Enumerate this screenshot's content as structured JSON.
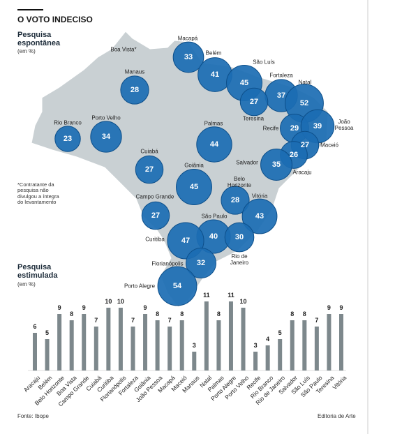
{
  "header": {
    "title": "O VOTO INDECISO"
  },
  "chart_data": [
    {
      "type": "bubble",
      "title": "Pesquisa espontânea",
      "subtitle": "(em %)",
      "note": "*Contratante da pesquisa não divulgou a íntegra do levantamento",
      "color": "#1b6db3",
      "categories": [
        "Boa Vista*",
        "Macapá",
        "Belém",
        "São Luís",
        "Manaus",
        "Fortaleza",
        "Natal",
        "Teresina",
        "Recife",
        "João Pessoa",
        "Maceió",
        "Aracaju",
        "Salvador",
        "Rio Branco",
        "Porto Velho",
        "Palmas",
        "Cuiabá",
        "Goiânia",
        "Belo Horizonte",
        "Vitória",
        "Campo Grande",
        "São Paulo",
        "Curitiba",
        "Rio de Janeiro",
        "Florianópolis",
        "Porto Alegre"
      ],
      "values": [
        null,
        33,
        41,
        45,
        28,
        37,
        52,
        27,
        29,
        39,
        27,
        26,
        35,
        23,
        34,
        44,
        27,
        45,
        28,
        43,
        27,
        40,
        47,
        30,
        32,
        54
      ]
    },
    {
      "type": "bar",
      "title": "Pesquisa estimulada",
      "subtitle": "(em %)",
      "color": "#7d888c",
      "categories": [
        "Aracaju",
        "Belém",
        "Belo Horizonte",
        "Boa Vista",
        "Campo Grande",
        "Cuiabá",
        "Curitiba",
        "Florianópolis",
        "Fortaleza",
        "Goiânia",
        "João Pessoa",
        "Macapá",
        "Maceió",
        "Manaus",
        "Natal",
        "Palmas",
        "Porto Alegre",
        "Porto Velho",
        "Recife",
        "Rio Branco",
        "Rio de Janeiro",
        "Salvador",
        "São Luís",
        "São Paulo",
        "Teresina",
        "Vitória"
      ],
      "values": [
        6,
        5,
        9,
        8,
        9,
        7,
        10,
        10,
        7,
        9,
        8,
        7,
        8,
        3,
        11,
        8,
        11,
        10,
        3,
        4,
        5,
        8,
        8,
        7,
        9,
        9
      ]
    }
  ],
  "footer": {
    "source": "Fonte: Ibope",
    "credit": "Editoria de Arte"
  }
}
